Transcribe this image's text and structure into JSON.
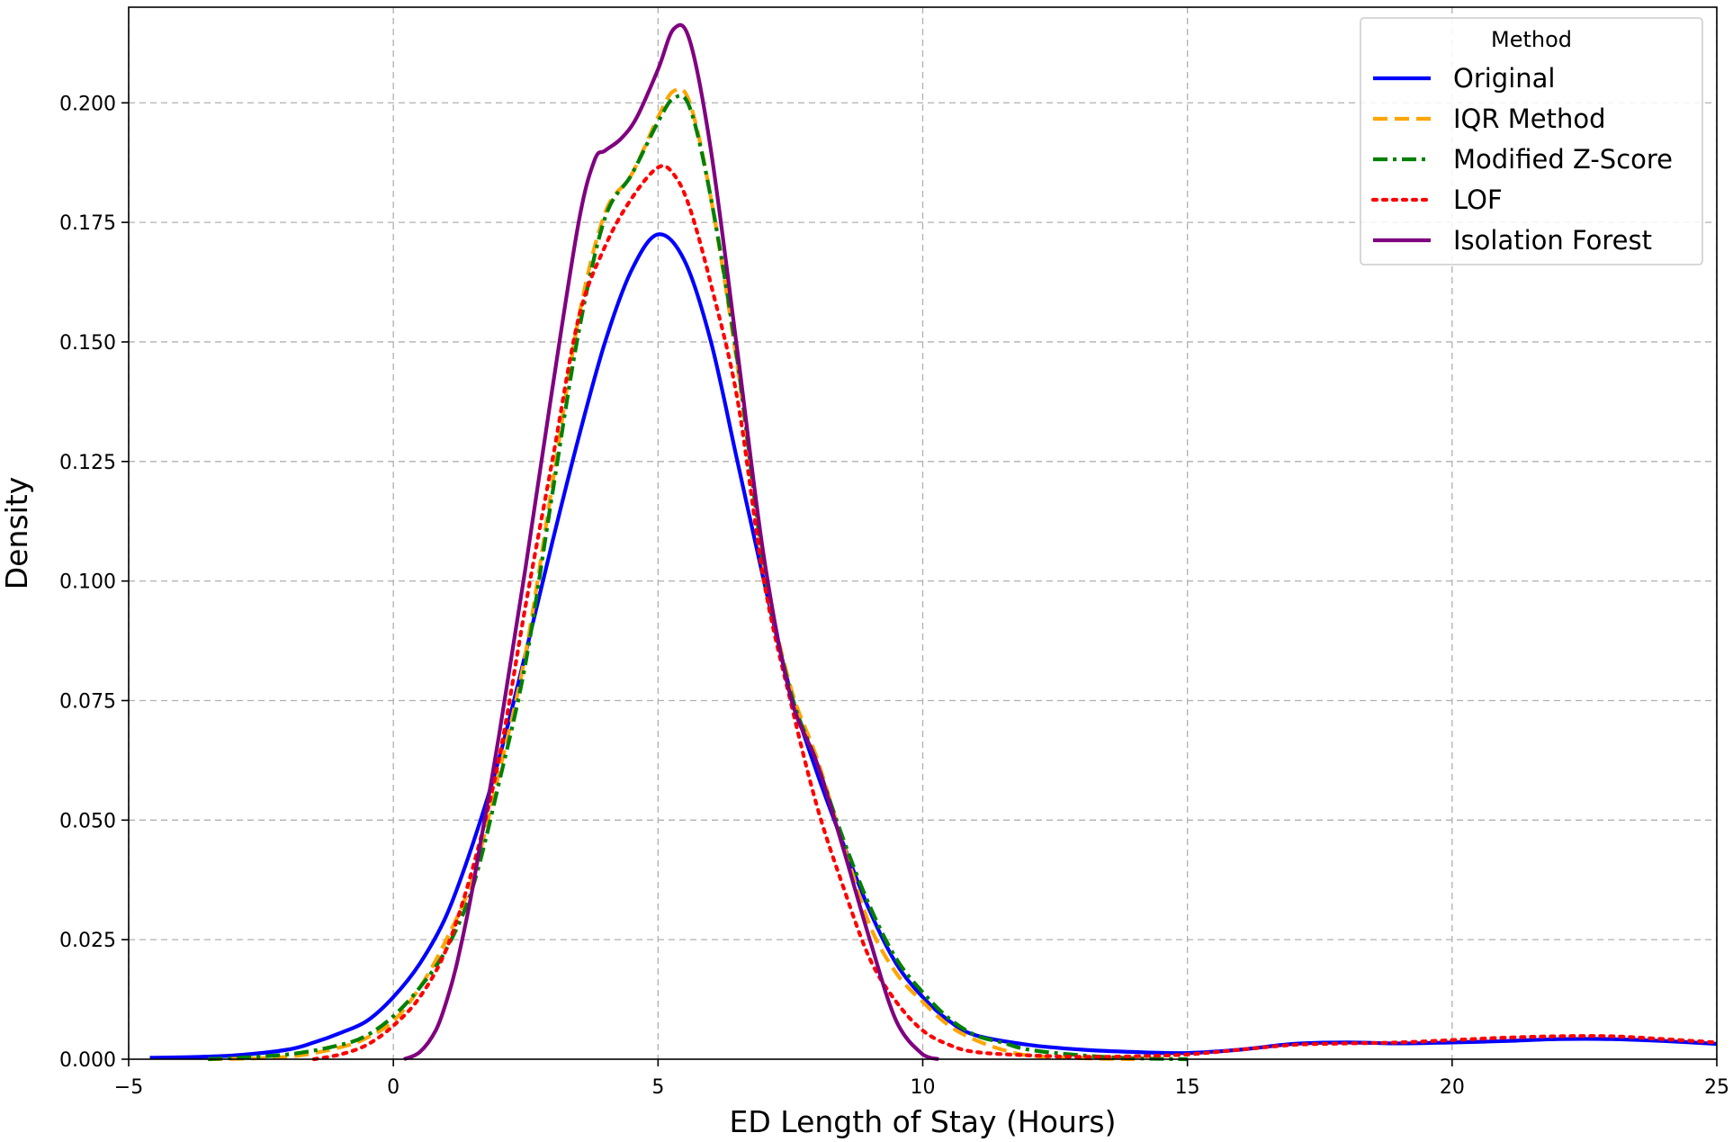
{
  "chart_data": {
    "type": "line",
    "xlabel": "ED Length of Stay (Hours)",
    "ylabel": "Density",
    "xlim": [
      -5,
      25
    ],
    "ylim": [
      0,
      0.22
    ],
    "x_ticks": [
      -5,
      0,
      5,
      10,
      15,
      20,
      25
    ],
    "x_tick_labels": [
      "−5",
      "0",
      "5",
      "10",
      "15",
      "20",
      "25"
    ],
    "y_ticks": [
      0,
      0.025,
      0.05,
      0.075,
      0.1,
      0.125,
      0.15,
      0.175,
      0.2
    ],
    "y_tick_labels": [
      "0.000",
      "0.025",
      "0.050",
      "0.075",
      "0.100",
      "0.125",
      "0.150",
      "0.175",
      "0.200"
    ],
    "grid": true,
    "legend": {
      "title": "Method",
      "position": "top-right"
    },
    "series": [
      {
        "name": "Original",
        "color": "#0000ff",
        "style": "solid",
        "points": [
          [
            -4.6,
            0.0003
          ],
          [
            -4,
            0.0004
          ],
          [
            -3,
            0.0008
          ],
          [
            -2,
            0.002
          ],
          [
            -1.5,
            0.0035
          ],
          [
            -1,
            0.0055
          ],
          [
            -0.5,
            0.008
          ],
          [
            0,
            0.013
          ],
          [
            0.5,
            0.02
          ],
          [
            1,
            0.03
          ],
          [
            1.5,
            0.045
          ],
          [
            2,
            0.063
          ],
          [
            2.5,
            0.085
          ],
          [
            3,
            0.108
          ],
          [
            3.5,
            0.13
          ],
          [
            4,
            0.15
          ],
          [
            4.5,
            0.165
          ],
          [
            5,
            0.1725
          ],
          [
            5.5,
            0.167
          ],
          [
            6,
            0.15
          ],
          [
            6.5,
            0.125
          ],
          [
            7,
            0.1
          ],
          [
            7.5,
            0.077
          ],
          [
            8,
            0.06
          ],
          [
            8.5,
            0.045
          ],
          [
            9,
            0.031
          ],
          [
            9.5,
            0.02
          ],
          [
            10,
            0.013
          ],
          [
            10.5,
            0.008
          ],
          [
            11,
            0.005
          ],
          [
            12,
            0.003
          ],
          [
            13,
            0.002
          ],
          [
            14,
            0.0015
          ],
          [
            15,
            0.0013
          ],
          [
            16,
            0.002
          ],
          [
            17,
            0.0032
          ],
          [
            18,
            0.0035
          ],
          [
            19,
            0.0033
          ],
          [
            20,
            0.0035
          ],
          [
            21,
            0.0038
          ],
          [
            22,
            0.0042
          ],
          [
            23,
            0.0042
          ],
          [
            24,
            0.0038
          ],
          [
            25,
            0.0032
          ]
        ]
      },
      {
        "name": "IQR Method",
        "color": "#ffa500",
        "style": "dashed",
        "points": [
          [
            -3.5,
            0
          ],
          [
            -2,
            0.0005
          ],
          [
            -1,
            0.0025
          ],
          [
            -0.5,
            0.0045
          ],
          [
            0,
            0.008
          ],
          [
            0.5,
            0.015
          ],
          [
            1,
            0.025
          ],
          [
            1.5,
            0.038
          ],
          [
            2,
            0.06
          ],
          [
            2.5,
            0.085
          ],
          [
            3,
            0.12
          ],
          [
            3.5,
            0.155
          ],
          [
            4,
            0.177
          ],
          [
            4.5,
            0.185
          ],
          [
            5,
            0.197
          ],
          [
            5.3,
            0.2025
          ],
          [
            5.6,
            0.2
          ],
          [
            6,
            0.18
          ],
          [
            6.5,
            0.145
          ],
          [
            7,
            0.103
          ],
          [
            7.5,
            0.078
          ],
          [
            8,
            0.063
          ],
          [
            8.5,
            0.045
          ],
          [
            9,
            0.028
          ],
          [
            9.5,
            0.018
          ],
          [
            10,
            0.012
          ],
          [
            10.5,
            0.007
          ],
          [
            11,
            0.004
          ],
          [
            11.5,
            0.002
          ],
          [
            12,
            0.0008
          ],
          [
            13,
            0.0002
          ],
          [
            14,
            0
          ]
        ]
      },
      {
        "name": "Modified Z-Score",
        "color": "#008000",
        "style": "dashdot",
        "points": [
          [
            -3.5,
            0
          ],
          [
            -2,
            0.001
          ],
          [
            -1,
            0.003
          ],
          [
            -0.5,
            0.005
          ],
          [
            0,
            0.009
          ],
          [
            0.5,
            0.015
          ],
          [
            1,
            0.023
          ],
          [
            1.5,
            0.036
          ],
          [
            2,
            0.058
          ],
          [
            2.5,
            0.083
          ],
          [
            3,
            0.118
          ],
          [
            3.5,
            0.152
          ],
          [
            4,
            0.176
          ],
          [
            4.5,
            0.185
          ],
          [
            5,
            0.196
          ],
          [
            5.3,
            0.201
          ],
          [
            5.6,
            0.199
          ],
          [
            6,
            0.18
          ],
          [
            6.5,
            0.146
          ],
          [
            7,
            0.103
          ],
          [
            7.5,
            0.077
          ],
          [
            8,
            0.062
          ],
          [
            8.5,
            0.046
          ],
          [
            9,
            0.032
          ],
          [
            9.5,
            0.021
          ],
          [
            10,
            0.014
          ],
          [
            10.5,
            0.0085
          ],
          [
            11,
            0.005
          ],
          [
            11.5,
            0.0035
          ],
          [
            12,
            0.002
          ],
          [
            13,
            0.0008
          ],
          [
            14,
            0.0002
          ],
          [
            15,
            0
          ]
        ]
      },
      {
        "name": "LOF",
        "color": "#ff0000",
        "style": "dotted",
        "points": [
          [
            -1.5,
            0
          ],
          [
            -1,
            0.001
          ],
          [
            -0.5,
            0.003
          ],
          [
            0,
            0.007
          ],
          [
            0.5,
            0.013
          ],
          [
            1,
            0.023
          ],
          [
            1.5,
            0.04
          ],
          [
            2,
            0.063
          ],
          [
            2.5,
            0.095
          ],
          [
            3,
            0.125
          ],
          [
            3.5,
            0.155
          ],
          [
            4,
            0.17
          ],
          [
            4.5,
            0.18
          ],
          [
            5,
            0.1865
          ],
          [
            5.3,
            0.185
          ],
          [
            5.6,
            0.178
          ],
          [
            6,
            0.162
          ],
          [
            6.5,
            0.138
          ],
          [
            7,
            0.1
          ],
          [
            7.5,
            0.075
          ],
          [
            8,
            0.053
          ],
          [
            8.5,
            0.036
          ],
          [
            9,
            0.021
          ],
          [
            9.5,
            0.012
          ],
          [
            10,
            0.006
          ],
          [
            10.5,
            0.003
          ],
          [
            11,
            0.0015
          ],
          [
            12,
            0.0008
          ],
          [
            13,
            0.0005
          ],
          [
            14,
            0.0006
          ],
          [
            15,
            0.001
          ],
          [
            16,
            0.002
          ],
          [
            17,
            0.003
          ],
          [
            18,
            0.0033
          ],
          [
            19,
            0.0035
          ],
          [
            20,
            0.004
          ],
          [
            21,
            0.0045
          ],
          [
            22,
            0.0048
          ],
          [
            23,
            0.0048
          ],
          [
            24,
            0.0042
          ],
          [
            25,
            0.0035
          ]
        ]
      },
      {
        "name": "Isolation Forest",
        "color": "#800080",
        "style": "solid",
        "points": [
          [
            0.2,
            0
          ],
          [
            0.5,
            0.0015
          ],
          [
            0.8,
            0.006
          ],
          [
            1,
            0.012
          ],
          [
            1.2,
            0.02
          ],
          [
            1.5,
            0.036
          ],
          [
            2,
            0.068
          ],
          [
            2.5,
            0.103
          ],
          [
            3,
            0.14
          ],
          [
            3.5,
            0.175
          ],
          [
            3.8,
            0.188
          ],
          [
            4,
            0.19
          ],
          [
            4.3,
            0.1925
          ],
          [
            4.6,
            0.197
          ],
          [
            5,
            0.207
          ],
          [
            5.3,
            0.2155
          ],
          [
            5.6,
            0.213
          ],
          [
            6,
            0.19
          ],
          [
            6.5,
            0.148
          ],
          [
            7,
            0.105
          ],
          [
            7.5,
            0.076
          ],
          [
            8,
            0.062
          ],
          [
            8.5,
            0.044
          ],
          [
            9,
            0.025
          ],
          [
            9.5,
            0.008
          ],
          [
            10,
            0.001
          ],
          [
            10.3,
            0
          ]
        ]
      }
    ]
  }
}
